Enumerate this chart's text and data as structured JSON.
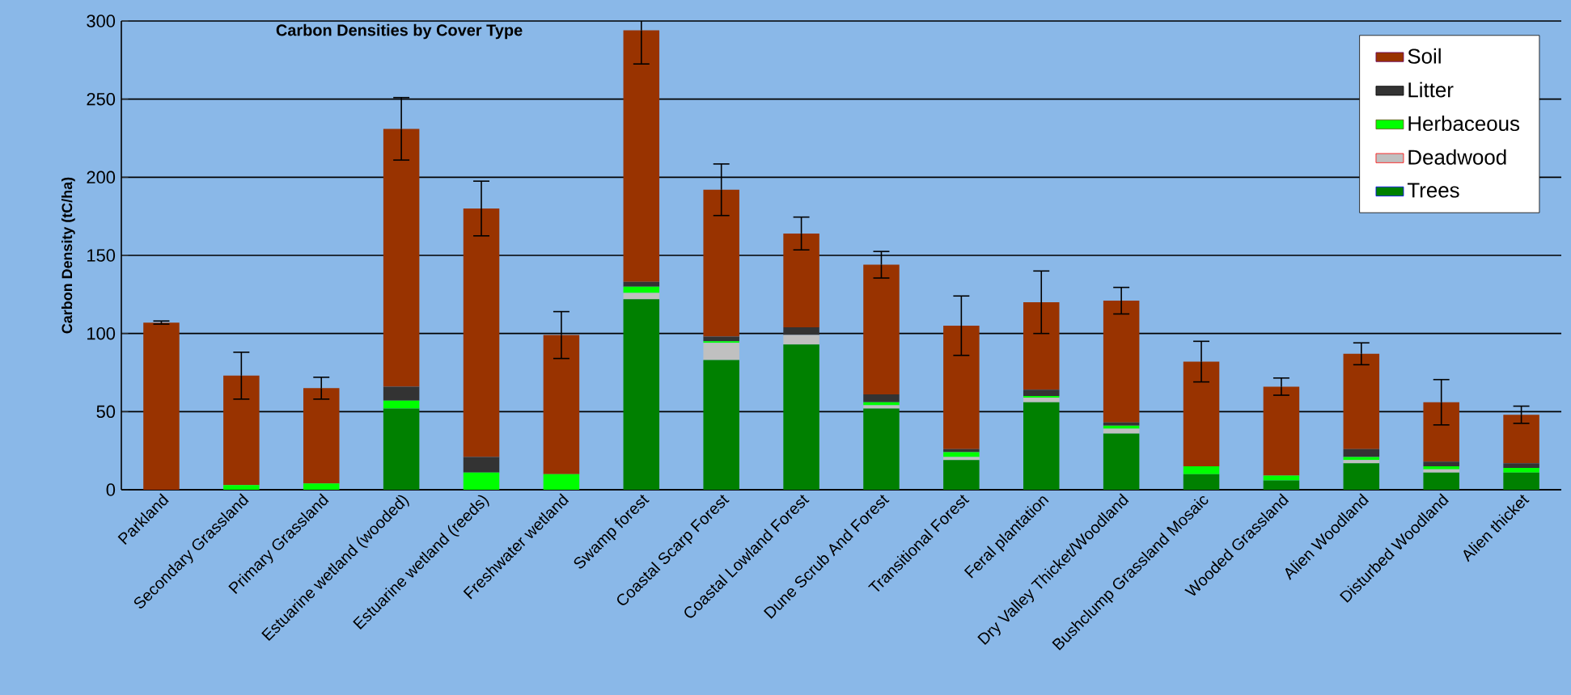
{
  "chart_data": {
    "type": "bar",
    "title": "Carbon Densities by Cover Type",
    "ylabel": "Carbon Density (tC/ha)",
    "categories": [
      "Parkland",
      "Secondary Grassland",
      "Primary Grassland",
      "Estuarine wetland (wooded)",
      "Estuarine wetland (reeds)",
      "Freshwater wetland",
      "Swamp forest",
      "Coastal Scarp Forest",
      "Coastal Lowland Forest",
      "Dune Scrub And Forest",
      "Transitional Forest",
      "Feral plantation",
      "Dry Valley Thicket/Woodland",
      "Bushclump Grassland Mosaic",
      "Wooded Grassland",
      "Alien Woodland",
      "Disturbed Woodland",
      "Alien thicket"
    ],
    "stacked": true,
    "series": [
      {
        "name": "Trees",
        "color": "#008000",
        "values": [
          0,
          0,
          0,
          52,
          0,
          0,
          122,
          83,
          93,
          52,
          19,
          56,
          36,
          10,
          6,
          17,
          11,
          11
        ]
      },
      {
        "name": "Deadwood",
        "color": "#c0c0c0",
        "values": [
          0,
          0,
          0,
          0,
          0,
          0,
          4,
          11,
          6,
          2,
          2,
          3,
          3,
          0,
          0,
          2,
          2,
          0
        ]
      },
      {
        "name": "Herbaceous",
        "color": "#00ff00",
        "values": [
          0,
          3,
          4,
          5,
          11,
          10,
          4,
          1,
          0,
          2,
          3,
          1,
          2,
          5,
          3,
          2,
          2,
          3
        ]
      },
      {
        "name": "Litter",
        "color": "#333333",
        "values": [
          0,
          0,
          0,
          9,
          10,
          0,
          3,
          3,
          5,
          5,
          2,
          4,
          2,
          0,
          0,
          5,
          3,
          3
        ]
      },
      {
        "name": "Soil",
        "color": "#993300",
        "values": [
          107,
          70,
          61,
          165,
          159,
          89,
          161,
          94,
          60,
          83,
          79,
          56,
          78,
          67,
          57,
          61,
          38,
          31
        ],
        "errors": [
          1,
          15,
          7,
          20,
          17.5,
          15,
          21.5,
          16.5,
          10.5,
          8.5,
          19,
          20,
          8.5,
          13,
          5.5,
          7,
          14.5,
          5.5
        ]
      }
    ],
    "ylim": [
      0,
      300
    ],
    "yticks": [
      0,
      50,
      100,
      150,
      200,
      250,
      300
    ],
    "grid": "y",
    "legend": "top right"
  }
}
